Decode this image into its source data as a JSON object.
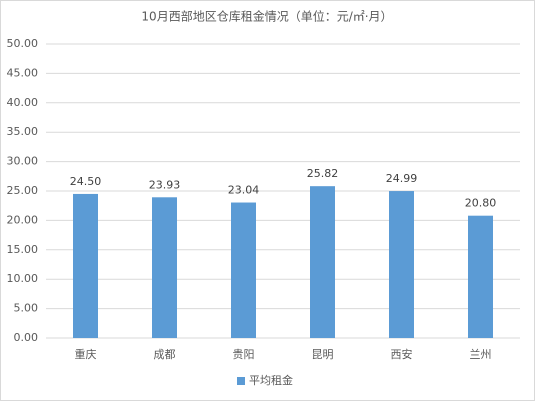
{
  "chart_data": {
    "type": "bar",
    "title": "10月西部地区仓库租金情况（单位：元/㎡·月）",
    "categories": [
      "重庆",
      "成都",
      "贵阳",
      "昆明",
      "西安",
      "兰州"
    ],
    "series": [
      {
        "name": "平均租金",
        "color": "#5b9bd5",
        "values": [
          24.5,
          23.93,
          23.04,
          25.82,
          24.99,
          20.8
        ],
        "value_labels": [
          "24.50",
          "23.93",
          "23.04",
          "25.82",
          "24.99",
          "20.80"
        ]
      }
    ],
    "ylim": [
      0,
      50
    ],
    "yticks": [
      {
        "value": 0,
        "label": "0.00"
      },
      {
        "value": 5,
        "label": "5.00"
      },
      {
        "value": 10,
        "label": "10.00"
      },
      {
        "value": 15,
        "label": "15.00"
      },
      {
        "value": 20,
        "label": "20.00"
      },
      {
        "value": 25,
        "label": "25.00"
      },
      {
        "value": 30,
        "label": "30.00"
      },
      {
        "value": 35,
        "label": "35.00"
      },
      {
        "value": 40,
        "label": "40.00"
      },
      {
        "value": 45,
        "label": "45.00"
      },
      {
        "value": 50,
        "label": "50.00"
      }
    ],
    "grid": true,
    "legend": "bottom"
  }
}
